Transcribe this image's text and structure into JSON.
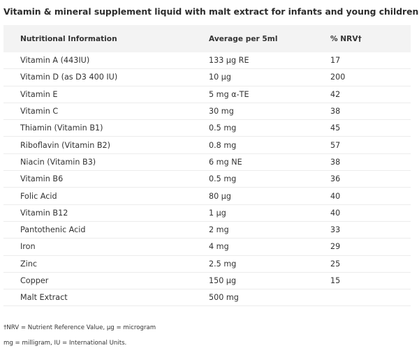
{
  "heading": "Vitamin & mineral supplement liquid with malt extract for infants and young children.",
  "table": {
    "headers": [
      "Nutritional Information",
      "Average per 5ml",
      "% NRV†"
    ],
    "rows": [
      [
        "Vitamin A (443IU)",
        "133 µg RE",
        "17"
      ],
      [
        "Vitamin D (as D3 400 IU)",
        "10 µg",
        "200"
      ],
      [
        "Vitamin E",
        "5 mg α-TE",
        "42"
      ],
      [
        "Vitamin C",
        "30 mg",
        "38"
      ],
      [
        "Thiamin (Vitamin B1)",
        "0.5 mg",
        "45"
      ],
      [
        "Riboflavin (Vitamin B2)",
        "0.8 mg",
        "57"
      ],
      [
        "Niacin (Vitamin B3)",
        "6 mg NE",
        "38"
      ],
      [
        "Vitamin B6",
        "0.5 mg",
        "36"
      ],
      [
        "Folic Acid",
        "80 µg",
        "40"
      ],
      [
        "Vitamin B12",
        "1 µg",
        "40"
      ],
      [
        "Pantothenic Acid",
        "2 mg",
        "33"
      ],
      [
        "Iron",
        "4 mg",
        "29"
      ],
      [
        "Zinc",
        "2.5 mg",
        "25"
      ],
      [
        "Copper",
        "150 µg",
        "15"
      ],
      [
        "Malt Extract",
        "500 mg",
        ""
      ]
    ]
  },
  "footnotes": [
    "†NRV = Nutrient Reference Value, µg = microgram",
    "mg = milligram, IU = International Units."
  ]
}
